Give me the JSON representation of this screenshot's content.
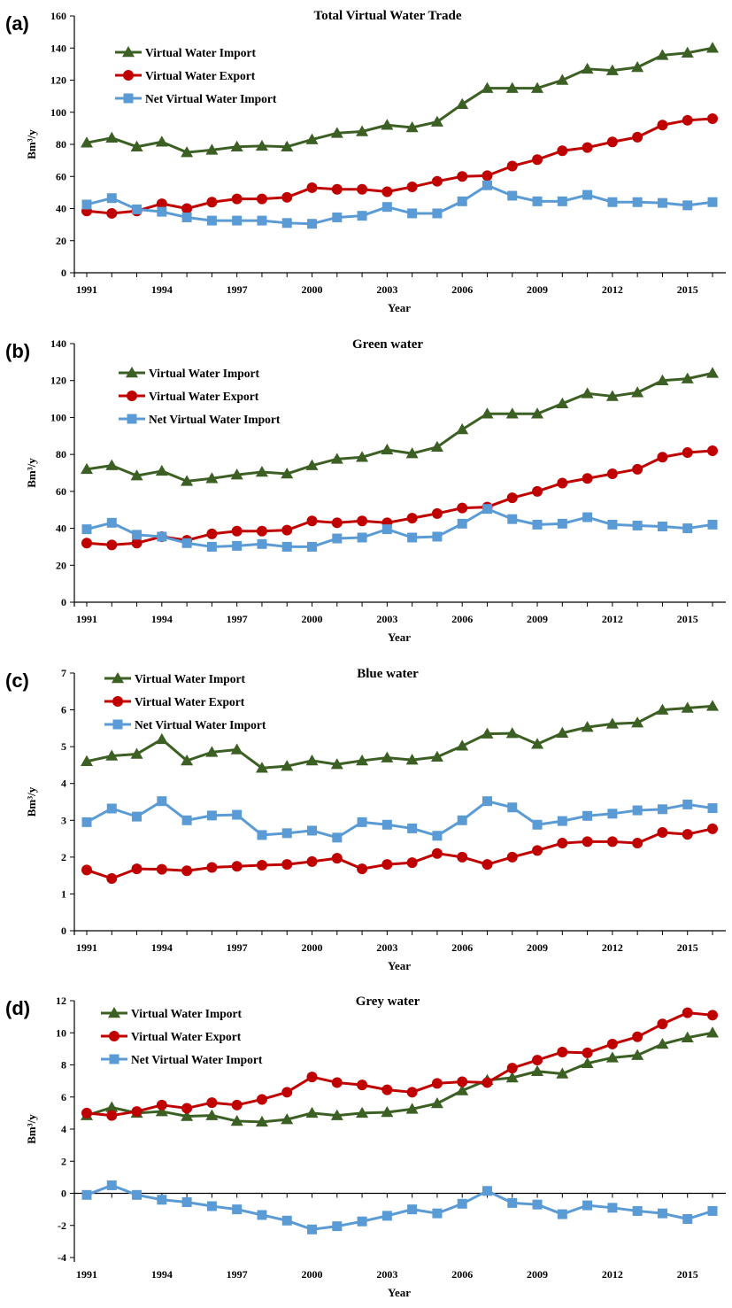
{
  "chart_data": [
    {
      "type": "line",
      "panel_label": "(a)",
      "title": "Total Virtual Water Trade",
      "xlabel": "Year",
      "ylabel": "Bm³/y",
      "ylim": [
        0,
        160
      ],
      "yticks": [
        0,
        20,
        40,
        60,
        80,
        100,
        120,
        140,
        160
      ],
      "xtick_labels": [
        "1991",
        "1994",
        "1997",
        "2000",
        "2003",
        "2006",
        "2009",
        "2012",
        "2015"
      ],
      "legend_position": "top-left",
      "grid": false,
      "x": [
        1991,
        1992,
        1993,
        1994,
        1995,
        1996,
        1997,
        1998,
        1999,
        2000,
        2001,
        2002,
        2003,
        2004,
        2005,
        2006,
        2007,
        2008,
        2009,
        2010,
        2011,
        2012,
        2013,
        2014,
        2015,
        2016
      ],
      "series": [
        {
          "name": "Virtual Water Import",
          "color": "#3c6024",
          "marker": "triangle",
          "values": [
            81,
            84,
            78.5,
            81.5,
            75,
            76.5,
            78.5,
            79,
            78.5,
            83,
            87,
            88,
            92,
            90.5,
            94,
            105,
            115,
            115,
            115,
            120,
            127,
            126,
            128,
            135.5,
            137,
            140
          ]
        },
        {
          "name": "Virtual Water Export",
          "color": "#c00000",
          "marker": "circle",
          "values": [
            38.5,
            37,
            38.5,
            43,
            40,
            44,
            46,
            46,
            47,
            53,
            52,
            52,
            50.5,
            53.5,
            57,
            60,
            60.5,
            66.5,
            70.5,
            76,
            78,
            81.5,
            84.5,
            92,
            95,
            96
          ]
        },
        {
          "name": "Net Virtual Water Import",
          "color": "#5b9bd5",
          "marker": "square",
          "values": [
            42.5,
            46.5,
            39.5,
            38,
            34.5,
            32.5,
            32.5,
            32.5,
            31,
            30.5,
            34.5,
            35.5,
            41,
            37,
            37,
            44.5,
            54.5,
            48,
            44.5,
            44.5,
            48.5,
            44,
            44,
            43.5,
            42,
            44
          ]
        }
      ]
    },
    {
      "type": "line",
      "panel_label": "(b)",
      "title": "Green water",
      "xlabel": "Year",
      "ylabel": "Bm³/y",
      "ylim": [
        0,
        140
      ],
      "yticks": [
        0,
        20,
        40,
        60,
        80,
        100,
        120,
        140
      ],
      "xtick_labels": [
        "1991",
        "1994",
        "1997",
        "2000",
        "2003",
        "2006",
        "2009",
        "2012",
        "2015"
      ],
      "legend_position": "top-left",
      "grid": false,
      "x": [
        1991,
        1992,
        1993,
        1994,
        1995,
        1996,
        1997,
        1998,
        1999,
        2000,
        2001,
        2002,
        2003,
        2004,
        2005,
        2006,
        2007,
        2008,
        2009,
        2010,
        2011,
        2012,
        2013,
        2014,
        2015,
        2016
      ],
      "series": [
        {
          "name": "Virtual Water Import",
          "color": "#3c6024",
          "marker": "triangle",
          "values": [
            72,
            74,
            68.5,
            71,
            65.5,
            67,
            69,
            70.5,
            69.5,
            74,
            77.5,
            78.5,
            82.5,
            80.5,
            84,
            93.5,
            102,
            102,
            102,
            107.5,
            113,
            111.5,
            113.5,
            120,
            121,
            124
          ]
        },
        {
          "name": "Virtual Water Export",
          "color": "#c00000",
          "marker": "circle",
          "values": [
            32,
            31,
            32,
            35.5,
            33.5,
            37,
            38.5,
            38.5,
            39,
            44,
            43,
            44,
            43,
            45.5,
            48,
            51,
            51.5,
            56.5,
            60,
            64.5,
            67,
            69.5,
            72,
            78.5,
            81,
            82
          ]
        },
        {
          "name": "Net Virtual Water Import",
          "color": "#5b9bd5",
          "marker": "square",
          "values": [
            39.5,
            43,
            36.5,
            35.5,
            32,
            30,
            30.5,
            31.5,
            30,
            30,
            34.5,
            35,
            39.5,
            35,
            35.5,
            42.5,
            50.5,
            45,
            42,
            42.5,
            46,
            42,
            41.5,
            41,
            40,
            42
          ]
        }
      ]
    },
    {
      "type": "line",
      "panel_label": "(c)",
      "title": "Blue water",
      "xlabel": "Year",
      "ylabel": "Bm³/y",
      "ylim": [
        0,
        7
      ],
      "yticks": [
        0,
        1,
        2,
        3,
        4,
        5,
        6,
        7
      ],
      "xtick_labels": [
        "1991",
        "1994",
        "1997",
        "2000",
        "2003",
        "2006",
        "2009",
        "2012",
        "2015"
      ],
      "legend_position": "top-left",
      "grid": false,
      "x": [
        1991,
        1992,
        1993,
        1994,
        1995,
        1996,
        1997,
        1998,
        1999,
        2000,
        2001,
        2002,
        2003,
        2004,
        2005,
        2006,
        2007,
        2008,
        2009,
        2010,
        2011,
        2012,
        2013,
        2014,
        2015,
        2016
      ],
      "series": [
        {
          "name": "Virtual Water Import",
          "color": "#3c6024",
          "marker": "triangle",
          "values": [
            4.6,
            4.75,
            4.8,
            5.2,
            4.62,
            4.85,
            4.92,
            4.42,
            4.47,
            4.62,
            4.52,
            4.62,
            4.7,
            4.64,
            4.72,
            5.02,
            5.35,
            5.36,
            5.07,
            5.37,
            5.53,
            5.62,
            5.65,
            6,
            6.05,
            6.1
          ]
        },
        {
          "name": "Virtual Water Export",
          "color": "#c00000",
          "marker": "circle",
          "values": [
            1.65,
            1.42,
            1.68,
            1.67,
            1.63,
            1.72,
            1.75,
            1.78,
            1.8,
            1.88,
            1.97,
            1.68,
            1.8,
            1.85,
            2.1,
            2,
            1.8,
            2,
            2.18,
            2.38,
            2.42,
            2.42,
            2.38,
            2.67,
            2.62,
            2.77
          ]
        },
        {
          "name": "Net Virtual Water Import",
          "color": "#5b9bd5",
          "marker": "square",
          "values": [
            2.95,
            3.32,
            3.1,
            3.52,
            3,
            3.13,
            3.15,
            2.6,
            2.65,
            2.72,
            2.53,
            2.95,
            2.88,
            2.78,
            2.58,
            3,
            3.52,
            3.35,
            2.88,
            2.98,
            3.12,
            3.18,
            3.27,
            3.3,
            3.43,
            3.33
          ]
        }
      ]
    },
    {
      "type": "line",
      "panel_label": "(d)",
      "title": "Grey water",
      "xlabel": "Year",
      "ylabel": "Bm³/y",
      "ylim": [
        -4,
        12
      ],
      "yticks": [
        -4,
        -2,
        0,
        2,
        4,
        6,
        8,
        10,
        12
      ],
      "xtick_labels": [
        "1991",
        "1994",
        "1997",
        "2000",
        "2003",
        "2006",
        "2009",
        "2012",
        "2015"
      ],
      "legend_position": "top-left",
      "grid": false,
      "x": [
        1991,
        1992,
        1993,
        1994,
        1995,
        1996,
        1997,
        1998,
        1999,
        2000,
        2001,
        2002,
        2003,
        2004,
        2005,
        2006,
        2007,
        2008,
        2009,
        2010,
        2011,
        2012,
        2013,
        2014,
        2015,
        2016
      ],
      "series": [
        {
          "name": "Virtual Water Import",
          "color": "#3c6024",
          "marker": "triangle",
          "values": [
            4.85,
            5.35,
            5,
            5.1,
            4.8,
            4.85,
            4.5,
            4.45,
            4.6,
            5,
            4.85,
            5,
            5.05,
            5.25,
            5.6,
            6.4,
            7.05,
            7.2,
            7.6,
            7.45,
            8.1,
            8.45,
            8.6,
            9.3,
            9.7,
            10
          ]
        },
        {
          "name": "Virtual Water Export",
          "color": "#c00000",
          "marker": "circle",
          "values": [
            5,
            4.85,
            5.1,
            5.5,
            5.3,
            5.65,
            5.5,
            5.85,
            6.3,
            7.25,
            6.9,
            6.75,
            6.45,
            6.3,
            6.85,
            6.95,
            6.9,
            7.8,
            8.3,
            8.8,
            8.75,
            9.3,
            9.75,
            10.55,
            11.25,
            11.1
          ]
        },
        {
          "name": "Net Virtual Water Import",
          "color": "#5b9bd5",
          "marker": "square",
          "values": [
            -0.1,
            0.5,
            -0.1,
            -0.4,
            -0.55,
            -0.8,
            -1,
            -1.35,
            -1.7,
            -2.25,
            -2.05,
            -1.75,
            -1.4,
            -1,
            -1.25,
            -0.65,
            0.15,
            -0.6,
            -0.7,
            -1.3,
            -0.75,
            -0.9,
            -1.1,
            -1.25,
            -1.6,
            -1.1
          ]
        }
      ]
    }
  ]
}
